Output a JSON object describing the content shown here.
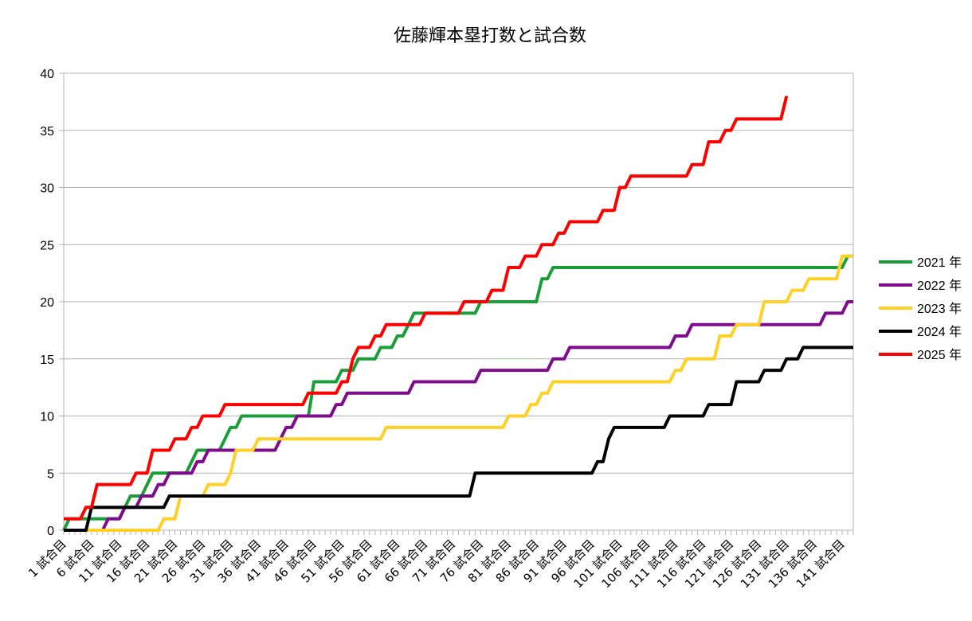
{
  "chart_data": {
    "type": "line",
    "title": "佐藤輝本塁打数と試合数",
    "xlabel": "",
    "ylabel": "",
    "ylim": [
      0,
      40
    ],
    "yticks": [
      0,
      5,
      10,
      15,
      20,
      25,
      30,
      35,
      40
    ],
    "x_range": [
      1,
      143
    ],
    "x_tick_step": 5,
    "x_tick_suffix": " 試合目",
    "grid": "horizontal",
    "legend_position": "right",
    "series": [
      {
        "name": "2021 年",
        "color": "#1a9e3a",
        "steps": [
          [
            1,
            0
          ],
          [
            2,
            1
          ],
          [
            12,
            2
          ],
          [
            13,
            3
          ],
          [
            16,
            4
          ],
          [
            17,
            5
          ],
          [
            24,
            6
          ],
          [
            25,
            7
          ],
          [
            30,
            8
          ],
          [
            31,
            9
          ],
          [
            33,
            10
          ],
          [
            46,
            13
          ],
          [
            51,
            14
          ],
          [
            54,
            15
          ],
          [
            58,
            16
          ],
          [
            61,
            17
          ],
          [
            63,
            18
          ],
          [
            64,
            19
          ],
          [
            76,
            20
          ],
          [
            87,
            22
          ],
          [
            89,
            23
          ],
          [
            142,
            24
          ],
          [
            143,
            24
          ]
        ]
      },
      {
        "name": "2022 年",
        "color": "#7e0c8c",
        "steps": [
          [
            1,
            0
          ],
          [
            9,
            1
          ],
          [
            12,
            2
          ],
          [
            15,
            3
          ],
          [
            18,
            4
          ],
          [
            20,
            5
          ],
          [
            25,
            6
          ],
          [
            27,
            7
          ],
          [
            40,
            8
          ],
          [
            41,
            9
          ],
          [
            43,
            10
          ],
          [
            50,
            11
          ],
          [
            52,
            12
          ],
          [
            64,
            13
          ],
          [
            76,
            14
          ],
          [
            89,
            15
          ],
          [
            92,
            16
          ],
          [
            111,
            17
          ],
          [
            114,
            18
          ],
          [
            138,
            19
          ],
          [
            142,
            20
          ],
          [
            143,
            20
          ]
        ]
      },
      {
        "name": "2023 年",
        "color": "#ffd124",
        "steps": [
          [
            1,
            0
          ],
          [
            19,
            1
          ],
          [
            22,
            3
          ],
          [
            27,
            4
          ],
          [
            31,
            5
          ],
          [
            32,
            7
          ],
          [
            36,
            8
          ],
          [
            59,
            9
          ],
          [
            81,
            10
          ],
          [
            85,
            11
          ],
          [
            87,
            12
          ],
          [
            89,
            13
          ],
          [
            111,
            14
          ],
          [
            113,
            15
          ],
          [
            119,
            17
          ],
          [
            122,
            18
          ],
          [
            127,
            20
          ],
          [
            132,
            21
          ],
          [
            135,
            22
          ],
          [
            141,
            24
          ],
          [
            143,
            24
          ]
        ]
      },
      {
        "name": "2024 年",
        "color": "#000000",
        "steps": [
          [
            1,
            0
          ],
          [
            6,
            2
          ],
          [
            20,
            3
          ],
          [
            75,
            5
          ],
          [
            97,
            6
          ],
          [
            99,
            8
          ],
          [
            100,
            9
          ],
          [
            110,
            10
          ],
          [
            117,
            11
          ],
          [
            122,
            13
          ],
          [
            127,
            14
          ],
          [
            131,
            15
          ],
          [
            134,
            16
          ],
          [
            143,
            16
          ]
        ]
      },
      {
        "name": "2025 年",
        "color": "#ff0000",
        "steps": [
          [
            1,
            1
          ],
          [
            5,
            2
          ],
          [
            7,
            4
          ],
          [
            14,
            5
          ],
          [
            17,
            7
          ],
          [
            21,
            8
          ],
          [
            24,
            9
          ],
          [
            26,
            10
          ],
          [
            30,
            11
          ],
          [
            45,
            12
          ],
          [
            51,
            13
          ],
          [
            53,
            15
          ],
          [
            54,
            16
          ],
          [
            57,
            17
          ],
          [
            59,
            18
          ],
          [
            66,
            19
          ],
          [
            73,
            20
          ],
          [
            78,
            21
          ],
          [
            81,
            23
          ],
          [
            84,
            24
          ],
          [
            87,
            25
          ],
          [
            90,
            26
          ],
          [
            92,
            27
          ],
          [
            98,
            28
          ],
          [
            101,
            30
          ],
          [
            103,
            31
          ],
          [
            114,
            32
          ],
          [
            117,
            34
          ],
          [
            120,
            35
          ],
          [
            122,
            36
          ],
          [
            131,
            38
          ]
        ]
      }
    ]
  }
}
